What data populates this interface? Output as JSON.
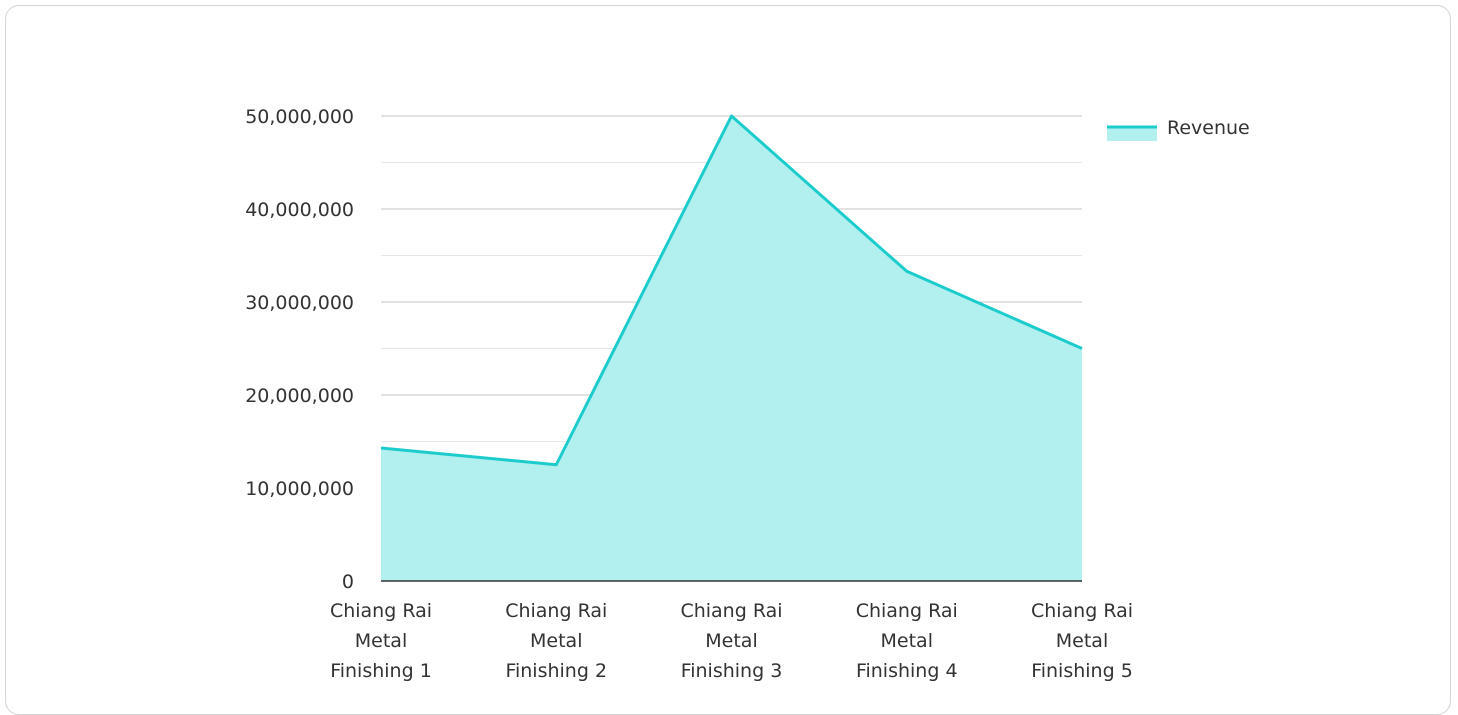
{
  "chart_data": {
    "type": "area",
    "categories": [
      [
        "Chiang Rai",
        "Metal",
        "Finishing 1"
      ],
      [
        "Chiang Rai",
        "Metal",
        "Finishing 2"
      ],
      [
        "Chiang Rai",
        "Metal",
        "Finishing 3"
      ],
      [
        "Chiang Rai",
        "Metal",
        "Finishing 4"
      ],
      [
        "Chiang Rai",
        "Metal",
        "Finishing 5"
      ]
    ],
    "series": [
      {
        "name": "Revenue",
        "values": [
          14300000,
          12500000,
          50000000,
          33300000,
          25000000
        ]
      }
    ],
    "ylim": [
      0,
      50000000
    ],
    "yticks": [
      {
        "value": 0,
        "label": "0"
      },
      {
        "value": 10000000,
        "label": "10,000,000"
      },
      {
        "value": 20000000,
        "label": "20,000,000"
      },
      {
        "value": 30000000,
        "label": "30,000,000"
      },
      {
        "value": 40000000,
        "label": "40,000,000"
      },
      {
        "value": 50000000,
        "label": "50,000,000"
      }
    ],
    "minor_gridlines": true,
    "grid": true,
    "legend_position": "top-right",
    "colors": {
      "line": "#1ccccc",
      "fill": "#b2efef",
      "major_grid": "#c4c4c4",
      "minor_grid": "#e6e6e6",
      "axis": "#333333"
    }
  }
}
